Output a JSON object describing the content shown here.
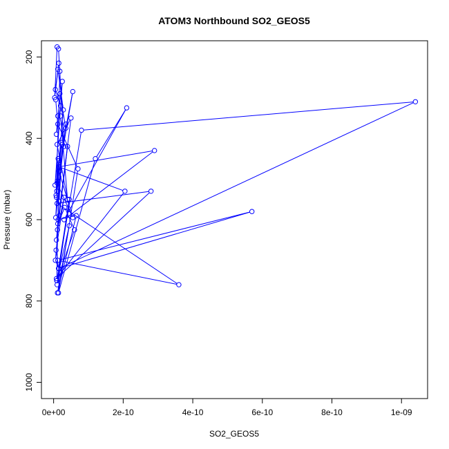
{
  "chart_data": {
    "type": "line",
    "title": "ATOM3 Northbound SO2_GEOS5",
    "xlabel": "SO2_GEOS5",
    "ylabel": "Pressure (mbar)",
    "xlim": [
      -3.5e-11,
      1.075e-09
    ],
    "ylim": [
      1040,
      160
    ],
    "y_reversed": true,
    "grid": false,
    "legend": "none",
    "color": "#0000ff",
    "x_ticks": [
      0,
      2e-10,
      4e-10,
      6e-10,
      8e-10,
      1e-09
    ],
    "x_tick_labels": [
      "0e+00",
      "2e-10",
      "4e-10",
      "6e-10",
      "8e-10",
      "1e-09"
    ],
    "y_ticks": [
      200,
      400,
      600,
      800,
      1000
    ],
    "y_tick_labels": [
      "200",
      "400",
      "600",
      "800",
      "1000"
    ],
    "series": [
      {
        "x": [
          1e-11,
          3e-12,
          1.5e-11,
          5e-12,
          2e-11,
          8e-12,
          1.2e-11,
          2.5e-11,
          4e-12,
          1.8e-11,
          3.5e-11,
          6e-12,
          1.5e-11,
          9e-12,
          2.2e-11,
          1.1e-11,
          3e-11,
          7e-12,
          1.4e-11,
          4.5e-11,
          1e-11,
          2e-11,
          5e-12,
          1.6e-11,
          4e-11,
          8e-12,
          1.2e-11,
          3.2e-11,
          6e-11,
          9e-12,
          1.5e-11,
          5.5e-11,
          1e-11,
          2.8e-11,
          1.2e-11,
          1.8e-11,
          7e-12,
          1.3e-11,
          2.5e-11,
          1.6e-11,
          8e-12,
          1.5e-11,
          1.1e-11,
          5.5e-11,
          3.5e-11,
          1.8e-11,
          6e-12,
          1.2e-11,
          7e-11,
          1.4e-11,
          1.2e-10,
          2.1e-10,
          3e-11,
          2.9e-10,
          1.5e-11,
          2.05e-10,
          8e-12,
          2.8e-10,
          1e-11,
          3.6e-10,
          1.2e-11,
          5.7e-10,
          1.5e-11,
          1.04e-09,
          8e-11,
          9e-12,
          4.5e-11,
          1.1e-11,
          6.5e-11,
          1.3e-11,
          5e-11,
          1e-11,
          4e-11,
          2e-11,
          3e-11,
          1.4e-11
        ],
        "y": [
          175,
          300,
          215,
          280,
          320,
          390,
          345,
          260,
          515,
          480,
          365,
          595,
          455,
          530,
          410,
          625,
          545,
          675,
          720,
          550,
          760,
          730,
          700,
          590,
          420,
          650,
          610,
          570,
          625,
          750,
          480,
          595,
          510,
          330,
          230,
          235,
          540,
          450,
          415,
          555,
          545,
          495,
          505,
          285,
          375,
          290,
          305,
          365,
          475,
          780,
          450,
          325,
          600,
          430,
          470,
          530,
          745,
          530,
          560,
          760,
          700,
          580,
          720,
          310,
          380,
          750,
          615,
          780,
          590,
          600,
          350,
          415,
          550,
          345,
          420,
          180
        ]
      }
    ]
  }
}
